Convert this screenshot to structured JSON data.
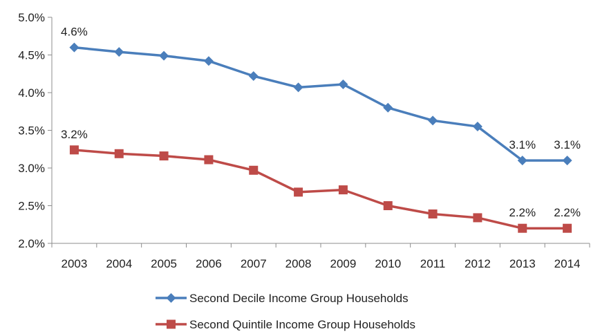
{
  "chart_data": {
    "type": "line",
    "title": "",
    "xlabel": "",
    "ylabel": "",
    "categories": [
      "2003",
      "2004",
      "2005",
      "2006",
      "2007",
      "2008",
      "2009",
      "2010",
      "2011",
      "2012",
      "2013",
      "2014"
    ],
    "ylim": [
      2.0,
      5.0
    ],
    "y_ticks": [
      2.0,
      2.5,
      3.0,
      3.5,
      4.0,
      4.5,
      5.0
    ],
    "y_tick_labels": [
      "2.0%",
      "2.5%",
      "3.0%",
      "3.5%",
      "4.0%",
      "4.5%",
      "5.0%"
    ],
    "grid": false,
    "legend_position": "bottom",
    "series": [
      {
        "name": "Second Decile Income Group Households",
        "color": "#4a7ebb",
        "marker": "diamond",
        "values": [
          4.6,
          4.54,
          4.49,
          4.42,
          4.22,
          4.07,
          4.11,
          3.8,
          3.63,
          3.55,
          3.1,
          3.1
        ],
        "data_labels": [
          {
            "index": 0,
            "text": "4.6%"
          },
          {
            "index": 10,
            "text": "3.1%"
          },
          {
            "index": 11,
            "text": "3.1%"
          }
        ]
      },
      {
        "name": "Second Quintile Income Group Households",
        "color": "#be4b48",
        "marker": "square",
        "values": [
          3.24,
          3.19,
          3.16,
          3.11,
          2.97,
          2.68,
          2.71,
          2.5,
          2.39,
          2.34,
          2.2,
          2.2
        ],
        "data_labels": [
          {
            "index": 0,
            "text": "3.2%"
          },
          {
            "index": 10,
            "text": "2.2%"
          },
          {
            "index": 11,
            "text": "2.2%"
          }
        ]
      }
    ]
  }
}
